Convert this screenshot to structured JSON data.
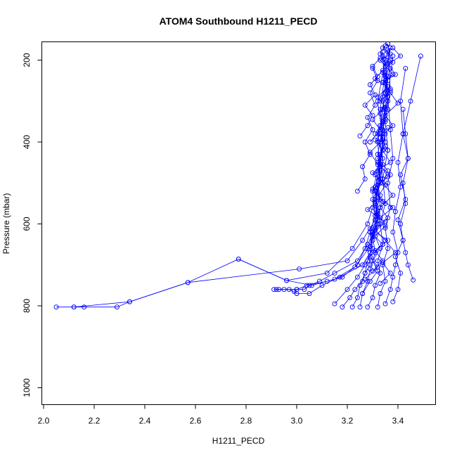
{
  "chart_data": {
    "type": "line",
    "title": "ATOM4 Southbound H1211_PECD",
    "xlabel": "H1211_PECD",
    "ylabel": "Pressure (mbar)",
    "xlim": [
      2.0,
      3.55
    ],
    "ylim": [
      1040,
      155
    ],
    "y_reversed": true,
    "x_ticks": [
      2.0,
      2.2,
      2.4,
      2.6,
      2.8,
      3.0,
      3.2,
      3.4
    ],
    "x_tick_labels": [
      "2.0",
      "2.2",
      "2.4",
      "2.6",
      "2.8",
      "3.0",
      "3.2",
      "3.4"
    ],
    "y_ticks": [
      200,
      400,
      600,
      800,
      1000
    ],
    "y_tick_labels": [
      "200",
      "400",
      "600",
      "800",
      "1000"
    ],
    "marker": "open-circle",
    "grid": false,
    "legend": "none",
    "colors": {
      "series": "#0000ff",
      "axes": "#000000",
      "background": "#ffffff"
    },
    "series": [
      {
        "x": [
          2.05,
          2.12,
          2.16,
          2.29,
          2.34,
          2.57,
          2.77,
          2.96,
          3.12,
          3.22,
          3.28,
          3.3,
          3.33,
          3.32,
          3.35,
          3.34,
          3.36,
          3.35,
          3.37,
          3.36
        ],
        "y": [
          803,
          803,
          803,
          803,
          790,
          743,
          686,
          738,
          720,
          660,
          600,
          560,
          500,
          450,
          400,
          350,
          300,
          250,
          200,
          160
        ]
      },
      {
        "x": [
          2.12,
          2.34,
          2.57,
          3.01,
          3.2,
          3.26,
          3.31,
          3.3,
          3.34,
          3.33,
          3.35,
          3.33,
          3.36,
          3.34,
          3.36
        ],
        "y": [
          803,
          790,
          743,
          710,
          690,
          640,
          590,
          540,
          490,
          430,
          380,
          330,
          280,
          230,
          175
        ]
      },
      {
        "x": [
          2.77,
          2.96,
          3.06,
          3.15,
          3.23,
          3.29,
          3.31,
          3.33,
          3.32,
          3.34,
          3.33,
          3.35,
          3.34,
          3.37
        ],
        "y": [
          686,
          738,
          750,
          735,
          705,
          655,
          610,
          560,
          505,
          455,
          400,
          345,
          290,
          220
        ]
      },
      {
        "x": [
          2.91,
          2.93,
          2.95,
          3.0,
          3.03,
          3.05,
          3.09,
          3.15,
          3.24,
          3.28,
          3.32,
          3.31,
          3.33,
          3.32,
          3.34,
          3.36
        ],
        "y": [
          760,
          760,
          760,
          760,
          760,
          750,
          740,
          720,
          690,
          650,
          600,
          540,
          470,
          400,
          320,
          240
        ]
      },
      {
        "x": [
          2.92,
          2.97,
          3.0,
          3.05,
          3.1,
          3.17,
          3.26,
          3.29,
          3.3,
          3.32,
          3.31,
          3.33,
          3.34,
          3.32,
          3.35
        ],
        "y": [
          760,
          760,
          770,
          770,
          750,
          730,
          700,
          670,
          620,
          570,
          510,
          460,
          390,
          300,
          200
        ]
      },
      {
        "x": [
          2.99,
          3.0,
          3.04,
          3.12,
          3.18,
          3.24,
          3.27,
          3.29,
          3.31,
          3.3,
          3.32,
          3.34,
          3.33,
          3.35,
          3.34
        ],
        "y": [
          765,
          760,
          750,
          740,
          730,
          700,
          660,
          620,
          580,
          520,
          470,
          420,
          360,
          280,
          190
        ]
      },
      {
        "x": [
          3.15,
          3.2,
          3.24,
          3.27,
          3.29,
          3.3,
          3.32,
          3.31,
          3.33,
          3.34,
          3.32,
          3.35,
          3.36,
          3.34
        ],
        "y": [
          795,
          760,
          730,
          700,
          680,
          640,
          600,
          550,
          500,
          440,
          380,
          320,
          250,
          180
        ]
      },
      {
        "x": [
          3.18,
          3.21,
          3.23,
          3.26,
          3.27,
          3.28,
          3.3,
          3.29,
          3.31,
          3.33,
          3.31,
          3.34,
          3.33,
          3.36,
          3.35,
          3.37
        ],
        "y": [
          803,
          780,
          760,
          740,
          720,
          690,
          660,
          620,
          580,
          530,
          480,
          420,
          360,
          300,
          240,
          170
        ]
      },
      {
        "x": [
          3.22,
          3.24,
          3.25,
          3.27,
          3.29,
          3.28,
          3.3,
          3.32,
          3.31,
          3.33,
          3.32,
          3.34,
          3.36,
          3.35
        ],
        "y": [
          803,
          780,
          750,
          720,
          700,
          660,
          630,
          590,
          540,
          490,
          430,
          370,
          290,
          205
        ]
      },
      {
        "x": [
          3.25,
          3.26,
          3.28,
          3.29,
          3.31,
          3.3,
          3.32,
          3.31,
          3.33,
          3.34,
          3.33,
          3.35
        ],
        "y": [
          803,
          770,
          740,
          710,
          670,
          630,
          580,
          520,
          460,
          390,
          320,
          230
        ]
      },
      {
        "x": [
          3.28,
          3.3,
          3.31,
          3.33,
          3.32,
          3.34,
          3.33,
          3.35,
          3.34,
          3.36,
          3.35,
          3.37,
          3.36
        ],
        "y": [
          803,
          780,
          750,
          720,
          690,
          650,
          600,
          550,
          490,
          420,
          350,
          270,
          180
        ]
      },
      {
        "x": [
          3.32,
          3.33,
          3.35,
          3.34,
          3.36,
          3.35,
          3.37,
          3.36,
          3.38,
          3.37,
          3.36,
          3.38
        ],
        "y": [
          803,
          770,
          740,
          700,
          660,
          610,
          560,
          500,
          440,
          370,
          290,
          190
        ]
      },
      {
        "x": [
          3.35,
          3.37,
          3.38,
          3.39,
          3.4,
          3.38,
          3.39,
          3.41,
          3.4,
          3.42,
          3.41,
          3.43
        ],
        "y": [
          795,
          760,
          730,
          700,
          670,
          620,
          570,
          510,
          450,
          380,
          300,
          220
        ]
      },
      {
        "x": [
          3.38,
          3.4,
          3.41,
          3.39,
          3.42,
          3.4,
          3.43,
          3.41,
          3.44,
          3.42,
          3.45,
          3.49
        ],
        "y": [
          790,
          760,
          720,
          680,
          640,
          590,
          540,
          480,
          440,
          380,
          300,
          190
        ]
      },
      {
        "x": [
          3.46,
          3.44,
          3.43,
          3.42,
          3.41,
          3.43,
          3.42,
          3.44,
          3.43,
          3.42
        ],
        "y": [
          737,
          700,
          670,
          640,
          600,
          550,
          500,
          440,
          380,
          320
        ]
      },
      {
        "x": [
          3.3,
          3.34,
          3.31,
          3.36,
          3.29,
          3.33,
          3.38,
          3.32,
          3.35,
          3.3,
          3.37,
          3.34,
          3.31,
          3.36
        ],
        "y": [
          715,
          690,
          665,
          640,
          612,
          585,
          560,
          535,
          505,
          475,
          450,
          420,
          395,
          365
        ]
      },
      {
        "x": [
          3.27,
          3.32,
          3.29,
          3.34,
          3.3,
          3.35,
          3.28,
          3.33,
          3.31,
          3.37,
          3.32,
          3.29,
          3.34
        ],
        "y": [
          735,
          705,
          680,
          650,
          625,
          595,
          565,
          540,
          510,
          480,
          455,
          425,
          395
        ]
      },
      {
        "x": [
          3.33,
          3.37,
          3.34,
          3.39,
          3.35,
          3.31,
          3.36,
          3.33,
          3.38,
          3.34,
          3.36,
          3.32,
          3.35,
          3.33
        ],
        "y": [
          745,
          720,
          695,
          670,
          640,
          615,
          585,
          560,
          530,
          500,
          470,
          440,
          410,
          380
        ]
      },
      {
        "x": [
          3.26,
          3.29,
          3.32,
          3.3,
          3.33,
          3.31,
          3.35,
          3.32,
          3.34,
          3.3,
          3.36,
          3.33
        ],
        "y": [
          770,
          740,
          715,
          690,
          660,
          630,
          605,
          575,
          545,
          515,
          485,
          455
        ]
      },
      {
        "x": [
          3.31,
          3.34,
          3.36,
          3.33,
          3.37,
          3.34,
          3.38,
          3.35,
          3.33,
          3.37,
          3.34,
          3.36
        ],
        "y": [
          380,
          350,
          320,
          300,
          275,
          255,
          235,
          215,
          200,
          185,
          170,
          160
        ]
      },
      {
        "x": [
          3.29,
          3.33,
          3.3,
          3.35,
          3.32,
          3.36,
          3.31,
          3.34,
          3.38,
          3.33,
          3.35
        ],
        "y": [
          400,
          370,
          345,
          315,
          290,
          265,
          245,
          225,
          205,
          185,
          165
        ]
      },
      {
        "x": [
          3.36,
          3.33,
          3.38,
          3.35,
          3.4,
          3.37,
          3.34,
          3.39,
          3.36,
          3.41,
          3.38
        ],
        "y": [
          420,
          390,
          360,
          335,
          305,
          280,
          255,
          235,
          210,
          190,
          170
        ]
      },
      {
        "x": [
          3.24,
          3.27,
          3.26,
          3.29,
          3.27,
          3.3,
          3.28,
          3.31,
          3.29,
          3.32,
          3.3
        ],
        "y": [
          520,
          490,
          460,
          430,
          400,
          370,
          340,
          310,
          280,
          250,
          220
        ]
      },
      {
        "x": [
          3.25,
          3.28,
          3.3,
          3.27,
          3.31,
          3.29,
          3.32,
          3.3,
          3.33
        ],
        "y": [
          385,
          360,
          335,
          310,
          285,
          260,
          240,
          215,
          195
        ]
      }
    ]
  }
}
